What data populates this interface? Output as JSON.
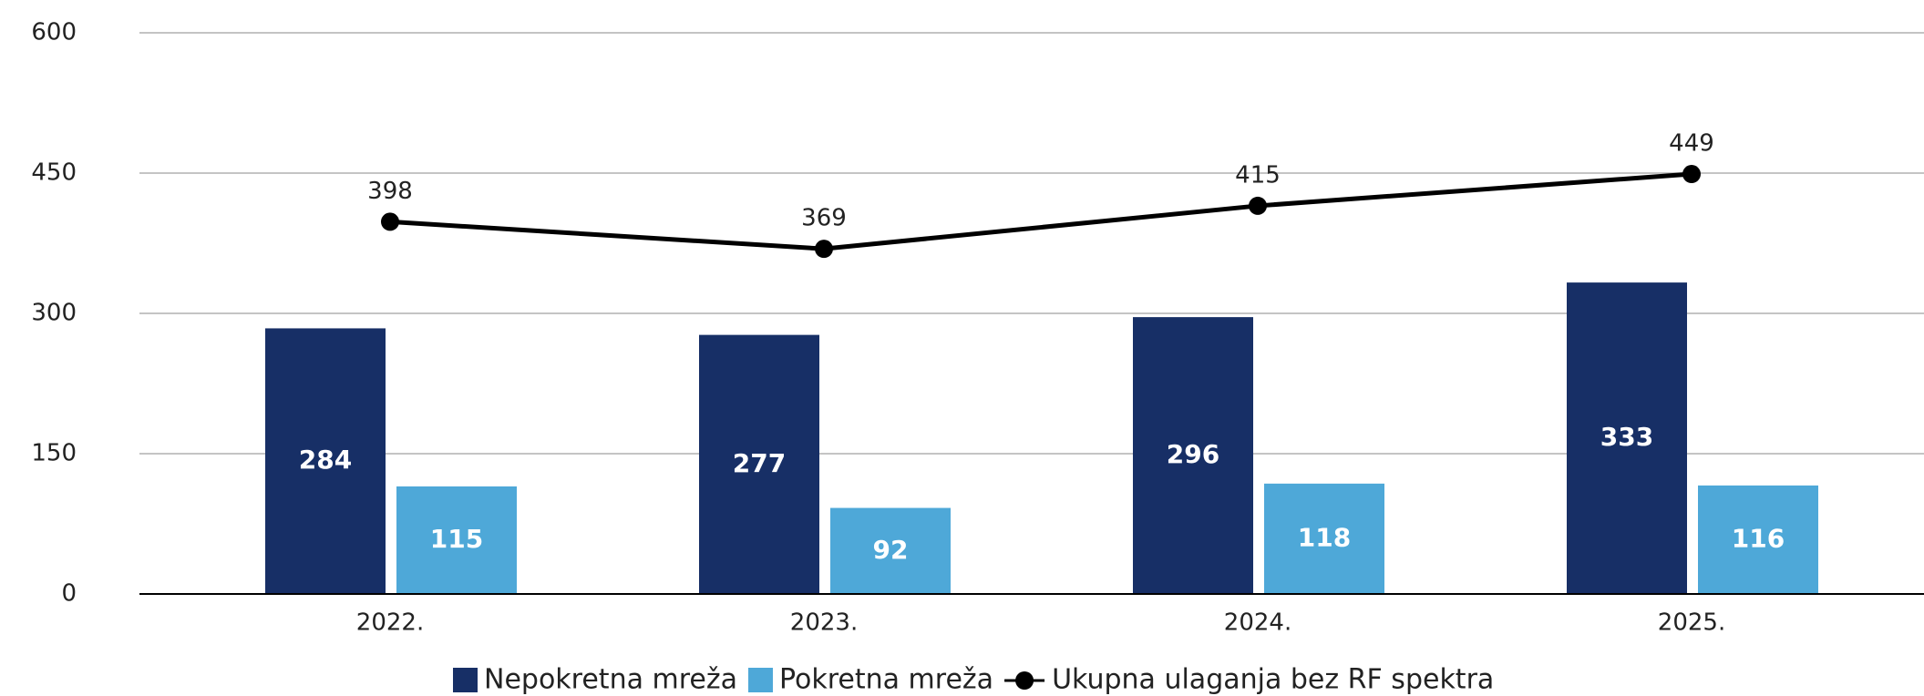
{
  "chart_data": {
    "type": "bar",
    "categories": [
      "2022.",
      "2023.",
      "2024.",
      "2025."
    ],
    "series": [
      {
        "name": "Nepokretna mreža",
        "color": "#172f66",
        "type": "bar",
        "values": [
          284,
          277,
          296,
          333
        ]
      },
      {
        "name": "Pokretna mreža",
        "color": "#4ea8d8",
        "type": "bar",
        "values": [
          115,
          92,
          118,
          116
        ]
      },
      {
        "name": "Ukupna ulaganja bez RF spektra",
        "color": "#000000",
        "type": "line",
        "values": [
          398,
          369,
          415,
          449
        ]
      }
    ],
    "ylim": [
      0,
      600
    ],
    "yticks": [
      0,
      150,
      300,
      450,
      600
    ],
    "grid": true
  }
}
